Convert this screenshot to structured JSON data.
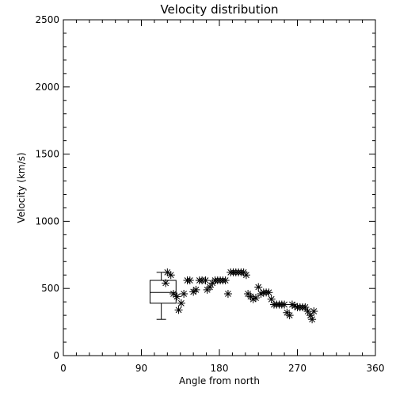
{
  "chart_data": {
    "type": "scatter",
    "title": "Velocity distribution",
    "xlabel": "Angle from north",
    "ylabel": "Velocity (km/s)",
    "xlim": [
      0,
      360
    ],
    "ylim": [
      0,
      2500
    ],
    "x_ticks": [
      0,
      90,
      180,
      270,
      360
    ],
    "y_ticks": [
      0,
      500,
      1000,
      1500,
      2000,
      2500
    ],
    "x_tick_labels": [
      "0",
      "90",
      "180",
      "270",
      "360"
    ],
    "y_tick_labels": [
      "0",
      "500",
      "1000",
      "1500",
      "2000",
      "2500"
    ],
    "grid": false,
    "legend": "none",
    "marker": "asterisk",
    "color": "#000000",
    "points": [
      {
        "x": 118,
        "y": 540
      },
      {
        "x": 120,
        "y": 620
      },
      {
        "x": 124,
        "y": 600
      },
      {
        "x": 127,
        "y": 460
      },
      {
        "x": 131,
        "y": 440
      },
      {
        "x": 133,
        "y": 340
      },
      {
        "x": 136,
        "y": 390
      },
      {
        "x": 139,
        "y": 460
      },
      {
        "x": 143,
        "y": 560
      },
      {
        "x": 146,
        "y": 560
      },
      {
        "x": 150,
        "y": 475
      },
      {
        "x": 153,
        "y": 490
      },
      {
        "x": 157,
        "y": 560
      },
      {
        "x": 160,
        "y": 560
      },
      {
        "x": 164,
        "y": 560
      },
      {
        "x": 166,
        "y": 490
      },
      {
        "x": 169,
        "y": 510
      },
      {
        "x": 172,
        "y": 540
      },
      {
        "x": 175,
        "y": 560
      },
      {
        "x": 178,
        "y": 560
      },
      {
        "x": 181,
        "y": 560
      },
      {
        "x": 184,
        "y": 560
      },
      {
        "x": 187,
        "y": 560
      },
      {
        "x": 190,
        "y": 460
      },
      {
        "x": 193,
        "y": 620
      },
      {
        "x": 196,
        "y": 620
      },
      {
        "x": 199,
        "y": 620
      },
      {
        "x": 202,
        "y": 620
      },
      {
        "x": 205,
        "y": 620
      },
      {
        "x": 208,
        "y": 620
      },
      {
        "x": 211,
        "y": 600
      },
      {
        "x": 213,
        "y": 460
      },
      {
        "x": 216,
        "y": 440
      },
      {
        "x": 219,
        "y": 420
      },
      {
        "x": 222,
        "y": 430
      },
      {
        "x": 225,
        "y": 510
      },
      {
        "x": 228,
        "y": 460
      },
      {
        "x": 231,
        "y": 470
      },
      {
        "x": 234,
        "y": 470
      },
      {
        "x": 237,
        "y": 470
      },
      {
        "x": 240,
        "y": 420
      },
      {
        "x": 243,
        "y": 380
      },
      {
        "x": 246,
        "y": 380
      },
      {
        "x": 249,
        "y": 380
      },
      {
        "x": 252,
        "y": 380
      },
      {
        "x": 255,
        "y": 380
      },
      {
        "x": 258,
        "y": 320
      },
      {
        "x": 261,
        "y": 300
      },
      {
        "x": 264,
        "y": 380
      },
      {
        "x": 267,
        "y": 370
      },
      {
        "x": 270,
        "y": 360
      },
      {
        "x": 273,
        "y": 360
      },
      {
        "x": 276,
        "y": 360
      },
      {
        "x": 279,
        "y": 360
      },
      {
        "x": 282,
        "y": 330
      },
      {
        "x": 285,
        "y": 300
      },
      {
        "x": 287,
        "y": 270
      },
      {
        "x": 289,
        "y": 330
      }
    ],
    "boxplot": {
      "x_left": 100,
      "x_right": 130,
      "whisker_x": 113,
      "min": 270,
      "q1": 390,
      "median": 470,
      "q3": 560,
      "max": 620
    }
  }
}
